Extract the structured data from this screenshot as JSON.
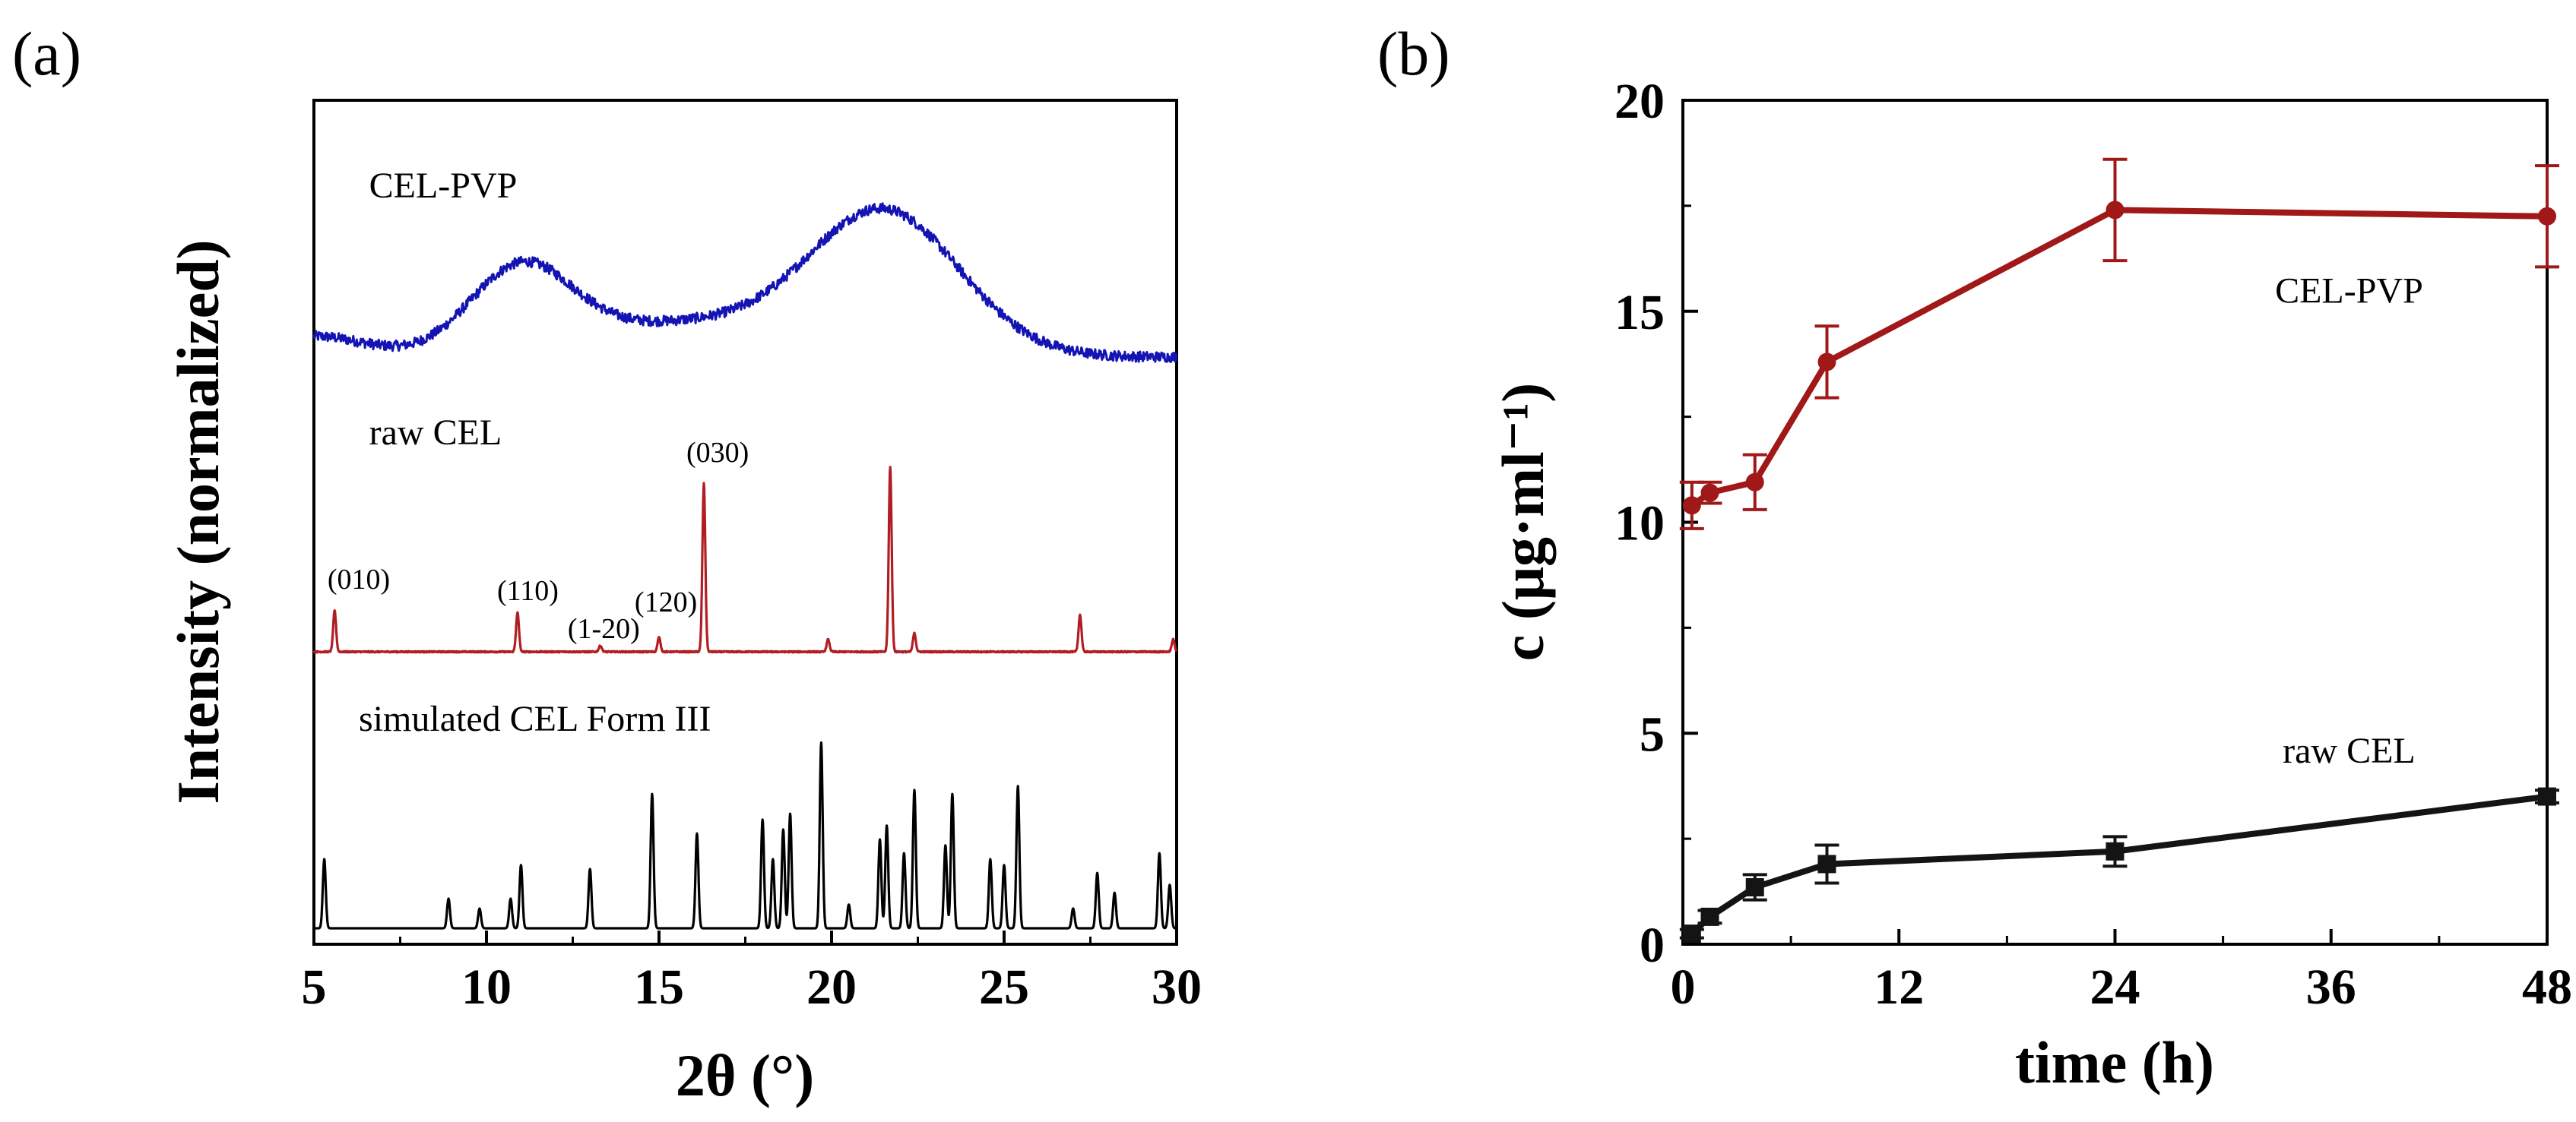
{
  "panels": {
    "a": {
      "label": "(a)"
    },
    "b": {
      "label": "(b)"
    }
  },
  "chart_data": [
    {
      "type": "line",
      "panel": "a",
      "xlabel": "2θ (°)",
      "ylabel": "Intensity (normalized)",
      "xlim": [
        5,
        30
      ],
      "xticks": [
        "5",
        "10",
        "15",
        "20",
        "25",
        "30"
      ],
      "yticks": [],
      "grid": false,
      "series": [
        {
          "name": "CEL-PVP",
          "color": "#1414b4",
          "profile": "amorphous halo",
          "halo_peaks_2theta": [
            11.0,
            21.5
          ]
        },
        {
          "name": "raw CEL",
          "color": "#b01e23",
          "peaks_2theta": [
            5.6,
            10.9,
            13.3,
            15.0,
            16.3,
            19.9,
            21.7,
            22.4,
            27.2,
            29.9
          ],
          "peak_heights_relative": [
            0.2,
            0.19,
            0.03,
            0.07,
            0.82,
            0.06,
            0.9,
            0.09,
            0.18,
            0.06
          ]
        },
        {
          "name": "simulated CEL Form III",
          "color": "#000000",
          "peaks_2theta": [
            5.3,
            8.9,
            9.8,
            10.7,
            11.0,
            13.0,
            14.8,
            16.1,
            18.0,
            18.3,
            18.6,
            18.8,
            19.7,
            20.5,
            21.4,
            21.6,
            22.1,
            22.4,
            23.3,
            23.5,
            24.6,
            25.0,
            25.4,
            27.0,
            27.7,
            28.2,
            29.5,
            29.8
          ],
          "peak_heights_relative": [
            0.35,
            0.15,
            0.1,
            0.15,
            0.32,
            0.3,
            0.68,
            0.48,
            0.55,
            0.35,
            0.5,
            0.58,
            0.94,
            0.12,
            0.45,
            0.52,
            0.38,
            0.7,
            0.42,
            0.68,
            0.35,
            0.32,
            0.72,
            0.1,
            0.28,
            0.18,
            0.38,
            0.22
          ]
        }
      ],
      "annotations": [
        {
          "text": "CEL-PVP",
          "x": 6.6,
          "near_series": "CEL-PVP"
        },
        {
          "text": "raw CEL",
          "x": 6.6,
          "near_series": "raw CEL"
        },
        {
          "text": "simulated CEL Form III",
          "x": 6.3,
          "near_series": "simulated CEL Form III"
        },
        {
          "text": "(010)",
          "x": 6.3,
          "near_series": "raw CEL"
        },
        {
          "text": "(110)",
          "x": 11.2,
          "near_series": "raw CEL"
        },
        {
          "text": "(1-20)",
          "x": 13.4,
          "near_series": "raw CEL"
        },
        {
          "text": "(120)",
          "x": 15.2,
          "near_series": "raw CEL"
        },
        {
          "text": "(030)",
          "x": 16.7,
          "near_series": "raw CEL"
        }
      ]
    },
    {
      "type": "line",
      "panel": "b",
      "xlabel": "time (h)",
      "ylabel": "c (μg·ml⁻¹)",
      "xlim": [
        0,
        48
      ],
      "ylim": [
        0,
        20
      ],
      "xticks": [
        0,
        12,
        24,
        36,
        48
      ],
      "yticks": [
        0,
        5,
        10,
        15,
        20
      ],
      "grid": false,
      "series": [
        {
          "name": "CEL-PVP",
          "label_text": "CEL-PVP",
          "color": "#a01818",
          "x": [
            0.5,
            1.5,
            4,
            8,
            24,
            48
          ],
          "y": [
            10.4,
            10.7,
            10.95,
            13.8,
            17.4,
            17.25
          ],
          "err": [
            0.55,
            0.25,
            0.65,
            0.85,
            1.2,
            1.2
          ]
        },
        {
          "name": "raw CEL",
          "label_text": "raw CEL",
          "color": "#141414",
          "x": [
            0.5,
            1.5,
            4,
            8,
            24,
            48
          ],
          "y": [
            0.25,
            0.65,
            1.35,
            1.9,
            2.2,
            3.5
          ],
          "err": [
            0.1,
            0.15,
            0.3,
            0.45,
            0.35,
            0.15
          ]
        }
      ]
    }
  ]
}
